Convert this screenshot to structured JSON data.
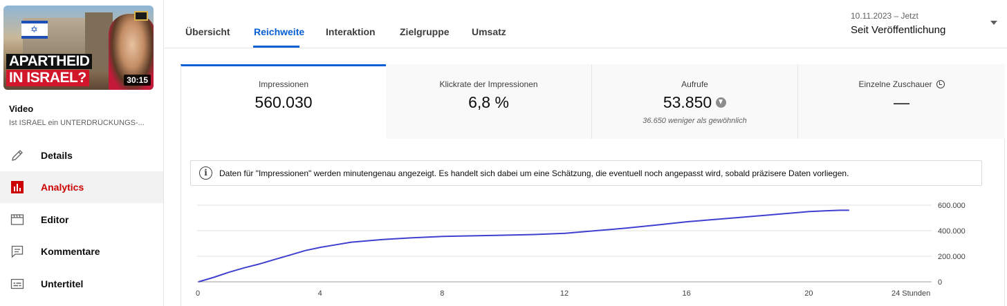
{
  "sidebar": {
    "thumbnail": {
      "line1": "APARTHEID",
      "line2": "IN ISRAEL?",
      "duration": "30:15"
    },
    "video_label": "Video",
    "video_title": "Ist ISRAEL ein UNTERDRÜCKUNGS-...",
    "items": [
      {
        "label": "Details",
        "icon": "pencil-icon",
        "active": false
      },
      {
        "label": "Analytics",
        "icon": "analytics-icon",
        "active": true
      },
      {
        "label": "Editor",
        "icon": "clapperboard-icon",
        "active": false
      },
      {
        "label": "Kommentare",
        "icon": "comment-icon",
        "active": false
      },
      {
        "label": "Untertitel",
        "icon": "subtitles-icon",
        "active": false
      }
    ],
    "accent_color": "#cc0000"
  },
  "tabs": [
    {
      "label": "Übersicht",
      "active": false
    },
    {
      "label": "Reichweite",
      "active": true
    },
    {
      "label": "Interaktion",
      "active": false
    },
    {
      "label": "Zielgruppe",
      "active": false
    },
    {
      "label": "Umsatz",
      "active": false
    }
  ],
  "date_range": {
    "range": "10.11.2023 – Jetzt",
    "label": "Seit Veröffentlichung"
  },
  "metrics": [
    {
      "title": "Impressionen",
      "value": "560.030",
      "active": true
    },
    {
      "title": "Klickrate der Impressionen",
      "value": "6,8 %",
      "active": false
    },
    {
      "title": "Aufrufe",
      "value": "53.850",
      "subtext": "36.650 weniger als gewöhnlich",
      "trend": "down",
      "active": false
    },
    {
      "title": "Einzelne Zuschauer",
      "value": "—",
      "active": false
    }
  ],
  "notice": {
    "text": "Daten für \"Impressionen\" werden minutengenau angezeigt. Es handelt sich dabei um eine Schätzung, die eventuell noch angepasst wird, sobald präzisere Daten vorliegen."
  },
  "chart_data": {
    "type": "line",
    "x_tick_labels": [
      "0",
      "4",
      "8",
      "12",
      "16",
      "20",
      "24 Stunden"
    ],
    "x_ticks": [
      0,
      4,
      8,
      12,
      16,
      20,
      24
    ],
    "y_tick_labels": [
      "0",
      "200.000",
      "400.000",
      "600.000"
    ],
    "y_ticks": [
      0,
      200000,
      400000,
      600000
    ],
    "xlim": [
      0,
      24
    ],
    "ylim": [
      0,
      600000
    ],
    "grid": true,
    "line_color": "#3f3fd0",
    "series": [
      {
        "x": [
          0,
          0.5,
          1,
          1.5,
          2,
          2.5,
          3,
          3.5,
          4,
          4.5,
          5,
          5.5,
          6,
          6.5,
          7,
          7.5,
          8,
          9,
          10,
          11,
          12,
          13,
          14,
          15,
          16,
          17,
          18,
          19,
          20,
          20.5,
          21,
          21.3
        ],
        "y": [
          0,
          35000,
          75000,
          110000,
          140000,
          175000,
          210000,
          245000,
          270000,
          290000,
          310000,
          320000,
          330000,
          338000,
          345000,
          350000,
          355000,
          360000,
          365000,
          370000,
          380000,
          400000,
          420000,
          445000,
          470000,
          490000,
          510000,
          530000,
          550000,
          555000,
          560000,
          560030
        ]
      }
    ]
  }
}
